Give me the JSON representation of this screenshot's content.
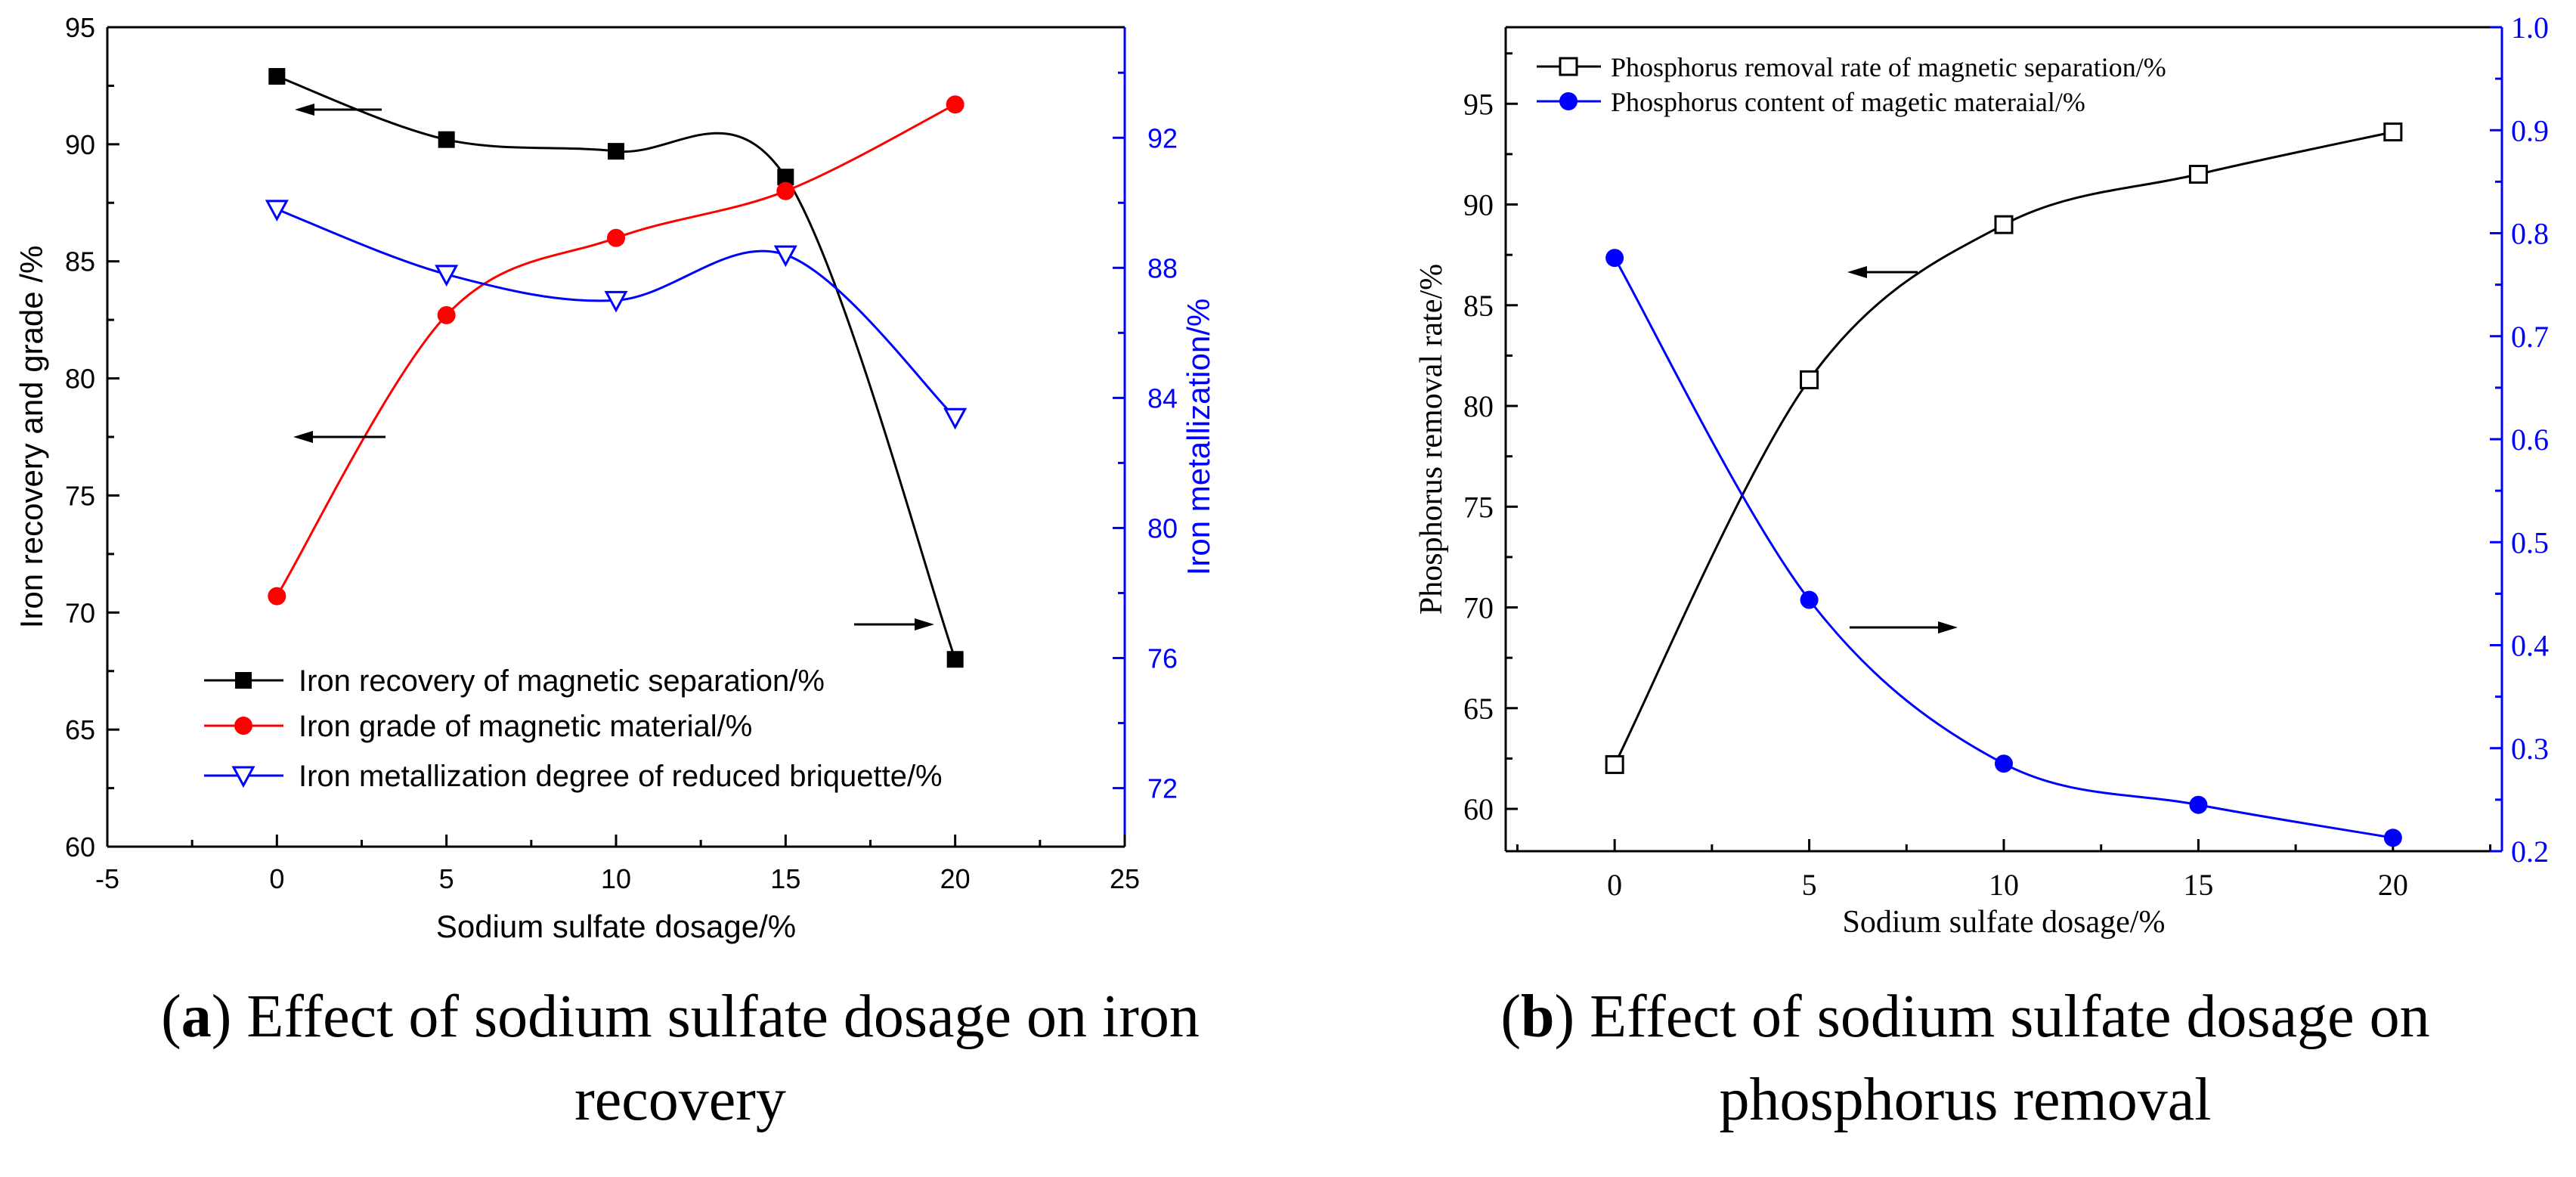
{
  "chart_data": [
    {
      "type": "line",
      "x": [
        0,
        5,
        10,
        15,
        20
      ],
      "xlabel": "Sodium sulfate dosage/%",
      "ylabel": "Iron recovery and grade /%",
      "y2label": "Iron metallization/%",
      "xlim": [
        -5,
        25
      ],
      "ylim": [
        60,
        95
      ],
      "y2lim": [
        70.2,
        95.4
      ],
      "x_ticks": [
        "-5",
        "0",
        "5",
        "10",
        "15",
        "20",
        "25"
      ],
      "y_ticks": [
        "60",
        "65",
        "70",
        "75",
        "80",
        "85",
        "90",
        "95"
      ],
      "y2_ticks": [
        "72",
        "76",
        "80",
        "84",
        "88",
        "92"
      ],
      "grid": false,
      "legend_position": "bottom-left",
      "series": [
        {
          "name": "Iron recovery of magnetic separation/%",
          "axis": "left",
          "marker": "filled-square",
          "color": "#000000",
          "values": [
            92.9,
            90.2,
            89.7,
            88.6,
            68.0
          ]
        },
        {
          "name": "Iron grade of magnetic material/%",
          "axis": "left",
          "marker": "filled-circle",
          "color": "#ff0000",
          "values": [
            70.7,
            82.7,
            86.0,
            88.0,
            91.7
          ]
        },
        {
          "name": "Iron metallization degree of reduced briquette/%",
          "axis": "right",
          "marker": "open-triangle-down",
          "color": "#0000ff",
          "values": [
            89.8,
            87.8,
            87.0,
            88.4,
            83.4
          ]
        }
      ],
      "caption_label": "a",
      "caption_text": ") Effect of sodium sulfate dosage on iron",
      "caption_text_line2": "recovery"
    },
    {
      "type": "line",
      "x": [
        0,
        5,
        10,
        15,
        20
      ],
      "xlabel": "Sodium sulfate dosage/%",
      "ylabel": "Phosphorus removal rate/%",
      "xlim": [
        -2.8,
        22.8
      ],
      "ylim": [
        57.9,
        98.8
      ],
      "y2lim": [
        0.2,
        1.0
      ],
      "x_ticks": [
        "0",
        "5",
        "10",
        "15",
        "20"
      ],
      "y_ticks": [
        "60",
        "65",
        "70",
        "75",
        "80",
        "85",
        "90",
        "95"
      ],
      "y2_ticks": [
        "0.2",
        "0.3",
        "0.4",
        "0.5",
        "0.6",
        "0.7",
        "0.8",
        "0.9",
        "1.0"
      ],
      "grid": false,
      "legend_position": "top-left",
      "series": [
        {
          "name": "Phosphorus removal rate of magnetic separation/%",
          "axis": "left",
          "marker": "open-square",
          "color": "#000000",
          "values": [
            62.2,
            81.3,
            89.0,
            91.5,
            93.6
          ]
        },
        {
          "name": "Phosphorus content of magetic materaial/%",
          "axis": "right",
          "marker": "filled-circle",
          "color": "#0000ff",
          "values": [
            0.776,
            0.444,
            0.285,
            0.245,
            0.213
          ]
        }
      ],
      "caption_label": "b",
      "caption_text": ") Effect of sodium sulfate dosage on",
      "caption_text_line2": "phosphorus removal"
    }
  ]
}
